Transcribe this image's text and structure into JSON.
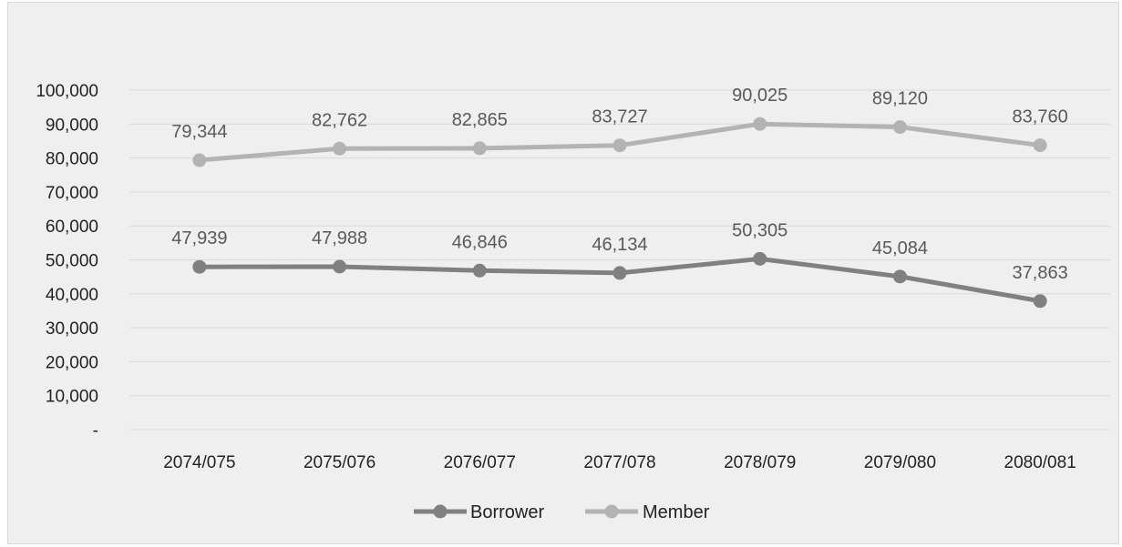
{
  "chart_data": {
    "type": "line",
    "title": "",
    "xlabel": "",
    "ylabel": "",
    "categories": [
      "2074/075",
      "2075/076",
      "2076/077",
      "2077/078",
      "2078/079",
      "2079/080",
      "2080/081"
    ],
    "ylim": [
      0,
      100000
    ],
    "yticks": [
      0,
      10000,
      20000,
      30000,
      40000,
      50000,
      60000,
      70000,
      80000,
      90000,
      100000
    ],
    "ytick_labels": [
      "-",
      "10,000",
      "20,000",
      "30,000",
      "40,000",
      "50,000",
      "60,000",
      "70,000",
      "80,000",
      "90,000",
      "100,000"
    ],
    "grid": true,
    "legend_position": "bottom",
    "series": [
      {
        "name": "Borrower",
        "color": "#808080",
        "values": [
          47939,
          47988,
          46846,
          46134,
          50305,
          45084,
          37863
        ],
        "labels": [
          "47,939",
          "47,988",
          "46,846",
          "46,134",
          "50,305",
          "45,084",
          "37,863"
        ]
      },
      {
        "name": "Member",
        "color": "#b3b3b3",
        "values": [
          79344,
          82762,
          82865,
          83727,
          90025,
          89120,
          83760
        ],
        "labels": [
          "79,344",
          "82,762",
          "82,865",
          "83,727",
          "90,025",
          "89,120",
          "83,760"
        ]
      }
    ]
  }
}
